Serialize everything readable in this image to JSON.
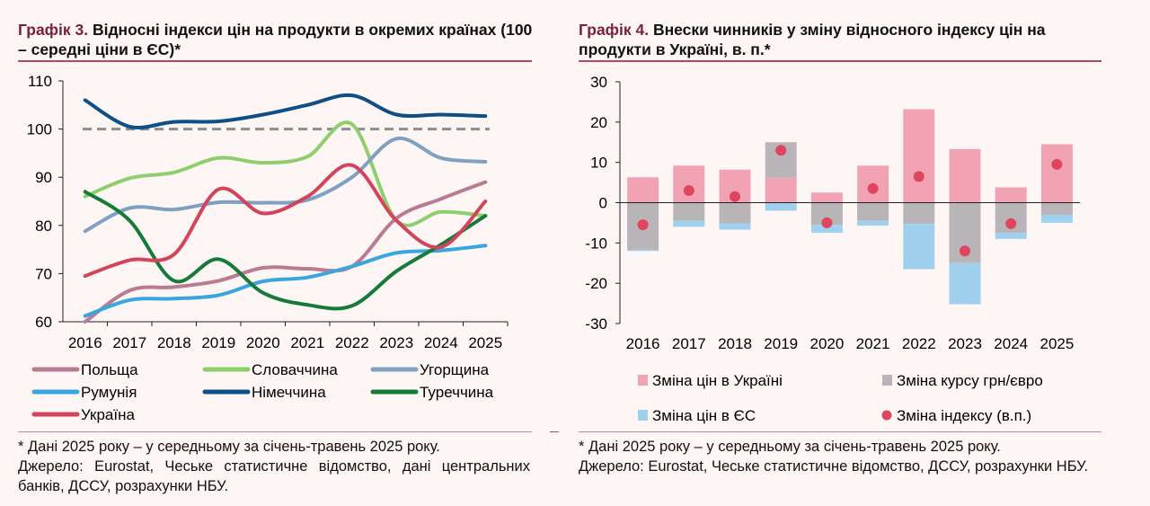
{
  "left": {
    "title_label": "Графік 3.",
    "title_rest": " Відносні індекси цін на продукти в окремих країнах (100 – середні ціни в ЄС)*",
    "footnote": "* Дані 2025 року – у середньому за січень-травень 2025 року.",
    "source": "Джерело: Eurostat, Чеське статистичне відомство, дані центральних банків, ДССУ, розрахунки НБУ."
  },
  "right": {
    "title_label": "Графік 4.",
    "title_rest": " Внески чинників у зміну відносного індексу цін на продукти в Україні, в. п.*",
    "footnote": "* Дані 2025 року – у середньому за січень-травень 2025 року.",
    "source": "Джерело: Eurostat, Чеське статистичне відомство, ДССУ, розрахунки НБУ."
  },
  "chart_data": [
    {
      "type": "line",
      "x": [
        "2016",
        "2017",
        "2018",
        "2019",
        "2020",
        "2021",
        "2022",
        "2023",
        "2024",
        "2025"
      ],
      "ylim": [
        60,
        110
      ],
      "yticks": [
        60,
        70,
        80,
        90,
        100,
        110
      ],
      "grid": false,
      "reference_line": 100,
      "legend_position": "bottom",
      "series": [
        {
          "name": "Польща",
          "color": "#b97a93",
          "values": [
            60,
            66.5,
            67.2,
            68.5,
            71.2,
            71,
            71.5,
            81.5,
            85.5,
            89
          ]
        },
        {
          "name": "Словаччина",
          "color": "#8fce6c",
          "values": [
            86,
            89.8,
            91,
            94,
            93,
            94.3,
            101,
            81,
            82.8,
            82
          ]
        },
        {
          "name": "Угорщина",
          "color": "#7f9fc3",
          "values": [
            78.8,
            83.6,
            83.3,
            84.8,
            84.7,
            85.3,
            90,
            98,
            94,
            93.2
          ]
        },
        {
          "name": "Румунія",
          "color": "#3aa6e0",
          "values": [
            61.2,
            64.5,
            64.8,
            65.5,
            68.4,
            69.2,
            71.5,
            74.3,
            74.8,
            75.8
          ]
        },
        {
          "name": "Німеччина",
          "color": "#0d4f86",
          "values": [
            106,
            100.5,
            101.5,
            101.6,
            103,
            105,
            107,
            103,
            103,
            102.7
          ]
        },
        {
          "name": "Туреччина",
          "color": "#157a3a",
          "values": [
            87,
            81,
            68.5,
            73,
            66,
            63.5,
            63.3,
            70.5,
            76,
            82
          ]
        },
        {
          "name": "Україна",
          "color": "#d4435c",
          "values": [
            69.5,
            72.8,
            74,
            87.5,
            82.5,
            86,
            92.5,
            81,
            75.5,
            85
          ]
        }
      ]
    },
    {
      "type": "bar",
      "stacked": true,
      "categories": [
        "2016",
        "2017",
        "2018",
        "2019",
        "2020",
        "2021",
        "2022",
        "2023",
        "2024",
        "2025"
      ],
      "ylim": [
        -30,
        30
      ],
      "yticks": [
        -30,
        -20,
        -10,
        0,
        10,
        20,
        30
      ],
      "legend_position": "bottom",
      "series": [
        {
          "name": "Зміна цін в Україні",
          "color": "#f2a3b3",
          "values": [
            6.3,
            9.2,
            8.2,
            6.2,
            2.5,
            9.2,
            23.2,
            13.3,
            3.8,
            14.5
          ]
        },
        {
          "name": "Зміна курсу грн/євро",
          "color": "#b9b4b7",
          "values": [
            -11.7,
            -4.5,
            -5.2,
            8.8,
            -5.5,
            -4.5,
            -5.3,
            -15,
            -7.5,
            -3
          ]
        },
        {
          "name": "Зміна цін в ЄС",
          "color": "#9fd1ef",
          "values": [
            -0.3,
            -1.5,
            -1.5,
            -2,
            -2,
            -1.2,
            -11.2,
            -10.2,
            -1.5,
            -2
          ]
        }
      ],
      "dots": {
        "name": "Зміна індексу (в.п.)",
        "color": "#e0455f",
        "values": [
          -5.5,
          3,
          1.5,
          13,
          -5,
          3.5,
          6.5,
          -12,
          -5.2,
          9.5
        ]
      }
    }
  ]
}
